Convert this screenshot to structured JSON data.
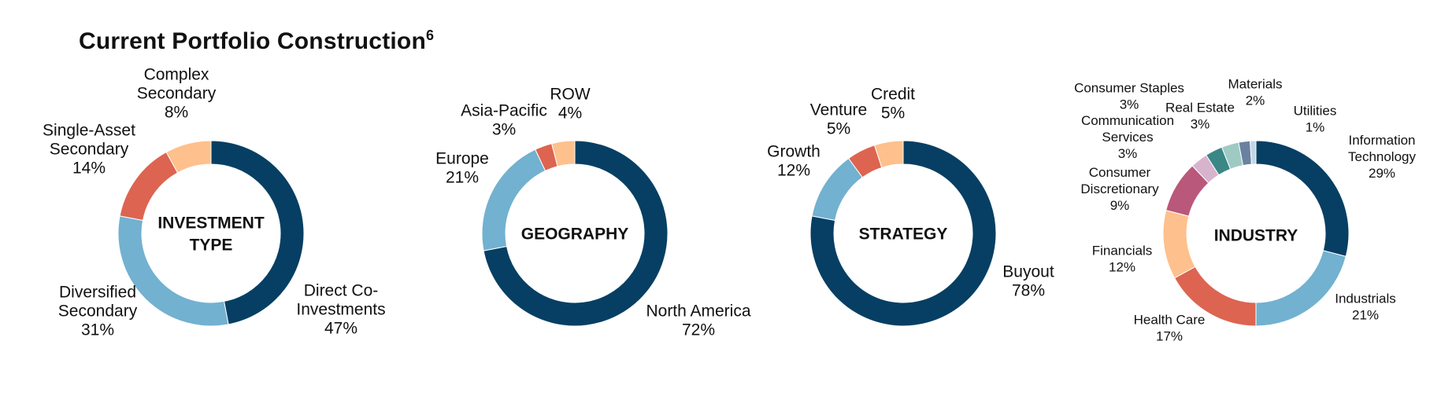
{
  "title": {
    "text": "Current Portfolio Construction",
    "footnote": "6"
  },
  "colors": {
    "dark_navy": "#063f63",
    "light_blue": "#72b1d0",
    "coral": "#dd6450",
    "peach": "#fec08c",
    "mauve": "#b9587a",
    "light_pink": "#d8b3cc",
    "teal": "#3a8785",
    "mint": "#9fcac4",
    "slate": "#6a82a0",
    "pale_blue": "#c1d6e6"
  },
  "chart_data": [
    {
      "type": "pie",
      "style": "donut",
      "center_label": "INVESTMENT TYPE",
      "slices": [
        {
          "label": "Direct Co-Investments",
          "value": 47,
          "value_label": "47%",
          "color": "#063f63"
        },
        {
          "label": "Diversified Secondary",
          "value": 31,
          "value_label": "31%",
          "color": "#72b1d0"
        },
        {
          "label": "Single-Asset Secondary",
          "value": 14,
          "value_label": "14%",
          "color": "#dd6450"
        },
        {
          "label": "Complex Secondary",
          "value": 8,
          "value_label": "8%",
          "color": "#fec08c"
        }
      ]
    },
    {
      "type": "pie",
      "style": "donut",
      "center_label": "GEOGRAPHY",
      "slices": [
        {
          "label": "North America",
          "value": 72,
          "value_label": "72%",
          "color": "#063f63"
        },
        {
          "label": "Europe",
          "value": 21,
          "value_label": "21%",
          "color": "#72b1d0"
        },
        {
          "label": "Asia-Pacific",
          "value": 3,
          "value_label": "3%",
          "color": "#dd6450"
        },
        {
          "label": "ROW",
          "value": 4,
          "value_label": "4%",
          "color": "#fec08c"
        }
      ]
    },
    {
      "type": "pie",
      "style": "donut",
      "center_label": "STRATEGY",
      "slices": [
        {
          "label": "Buyout",
          "value": 78,
          "value_label": "78%",
          "color": "#063f63"
        },
        {
          "label": "Growth",
          "value": 12,
          "value_label": "12%",
          "color": "#72b1d0"
        },
        {
          "label": "Venture",
          "value": 5,
          "value_label": "5%",
          "color": "#dd6450"
        },
        {
          "label": "Credit",
          "value": 5,
          "value_label": "5%",
          "color": "#fec08c"
        }
      ]
    },
    {
      "type": "pie",
      "style": "donut",
      "center_label": "INDUSTRY",
      "slices": [
        {
          "label": "Information Technology",
          "value": 29,
          "value_label": "29%",
          "color": "#063f63"
        },
        {
          "label": "Industrials",
          "value": 21,
          "value_label": "21%",
          "color": "#72b1d0"
        },
        {
          "label": "Health Care",
          "value": 17,
          "value_label": "17%",
          "color": "#dd6450"
        },
        {
          "label": "Financials",
          "value": 12,
          "value_label": "12%",
          "color": "#fec08c"
        },
        {
          "label": "Consumer Discretionary",
          "value": 9,
          "value_label": "9%",
          "color": "#b9587a"
        },
        {
          "label": "Communication Services",
          "value": 3,
          "value_label": "3%",
          "color": "#d8b3cc"
        },
        {
          "label": "Consumer Staples",
          "value": 3,
          "value_label": "3%",
          "color": "#3a8785"
        },
        {
          "label": "Real Estate",
          "value": 3,
          "value_label": "3%",
          "color": "#9fcac4"
        },
        {
          "label": "Materials",
          "value": 2,
          "value_label": "2%",
          "color": "#6a82a0"
        },
        {
          "label": "Utilities",
          "value": 1,
          "value_label": "1%",
          "color": "#c1d6e6"
        }
      ]
    }
  ]
}
